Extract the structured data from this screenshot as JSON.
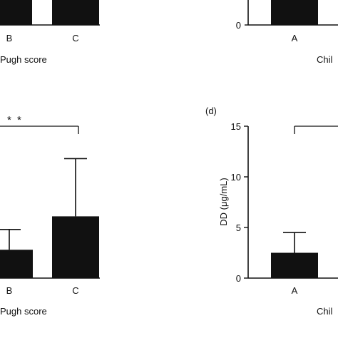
{
  "chart_data": [
    {
      "panel": "top-left (cropped)",
      "type": "bar",
      "categories": [
        "B",
        "C"
      ],
      "values": [
        null,
        null
      ],
      "xlabel": "Pugh score",
      "ylabel": ""
    },
    {
      "panel": "top-right (cropped)",
      "type": "bar",
      "categories": [
        "A"
      ],
      "values": [
        null
      ],
      "xlabel": "Chil",
      "ylabel": "",
      "yticks": [
        "0"
      ]
    },
    {
      "panel": "bottom-left (cropped)",
      "type": "bar",
      "categories": [
        "B",
        "C"
      ],
      "values": [
        2.8,
        6.1
      ],
      "errors": [
        4.8,
        11.8
      ],
      "ylim": [
        0,
        15
      ],
      "xlabel": "Pugh score",
      "ylabel": "",
      "annotation": "* *"
    },
    {
      "panel": "bottom-right (d)",
      "panel_label": "(d)",
      "type": "bar",
      "categories": [
        "A"
      ],
      "values": [
        2.5
      ],
      "errors": [
        4.5
      ],
      "ylim": [
        0,
        15
      ],
      "yticks": [
        "0",
        "5",
        "10",
        "15"
      ],
      "xlabel": "Chil",
      "ylabel": "DD (μg/mL)"
    }
  ],
  "colors": {
    "bar": "#111111",
    "axis": "#111111"
  }
}
